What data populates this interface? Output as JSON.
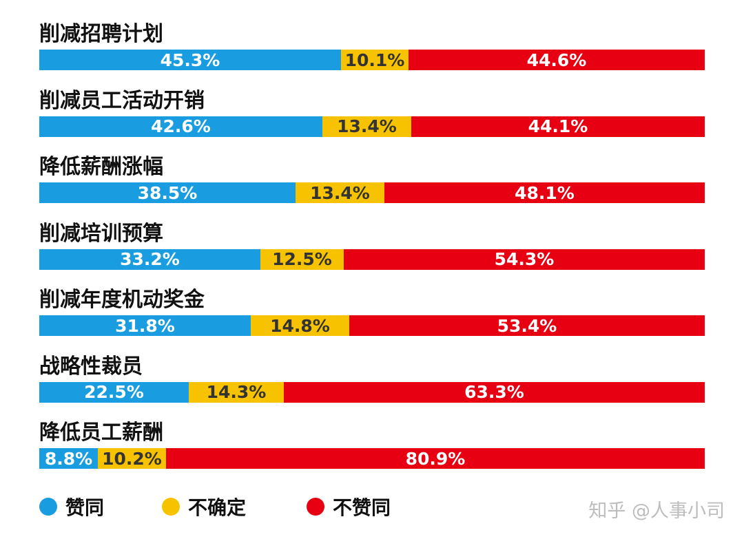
{
  "chart_data": {
    "type": "bar",
    "stacked": true,
    "orientation": "horizontal",
    "categories": [
      "削减招聘计划",
      "削减员工活动开销",
      "降低薪酬涨幅",
      "削减培训预算",
      "削减年度机动奖金",
      "战略性裁员",
      "降低员工薪酬"
    ],
    "series": [
      {
        "name": "赞同",
        "color": "#1a9de0",
        "values": [
          45.3,
          42.6,
          38.5,
          33.2,
          31.8,
          22.5,
          8.8
        ],
        "labels": [
          "45.3%",
          "42.6%",
          "38.5%",
          "33.2%",
          "31.8%",
          "22.5%",
          "8.8%"
        ]
      },
      {
        "name": "不确定",
        "color": "#f7c200",
        "values": [
          10.1,
          13.4,
          13.4,
          12.5,
          14.8,
          14.3,
          10.2
        ],
        "labels": [
          "10.1%",
          "13.4%",
          "13.4%",
          "12.5%",
          "14.8%",
          "14.3%",
          "10.2%"
        ]
      },
      {
        "name": "不赞同",
        "color": "#e60012",
        "values": [
          44.6,
          44.1,
          48.1,
          54.3,
          53.4,
          63.3,
          80.9
        ],
        "labels": [
          "44.6%",
          "44.1%",
          "48.1%",
          "54.3%",
          "53.4%",
          "63.3%",
          "80.9%"
        ]
      }
    ],
    "legend_position": "bottom-left",
    "grid": false
  },
  "legend": {
    "items": [
      {
        "label": "赞同",
        "color": "#1a9de0"
      },
      {
        "label": "不确定",
        "color": "#f7c200"
      },
      {
        "label": "不赞同",
        "color": "#e60012"
      }
    ]
  },
  "watermark": "知乎 @人事小司"
}
